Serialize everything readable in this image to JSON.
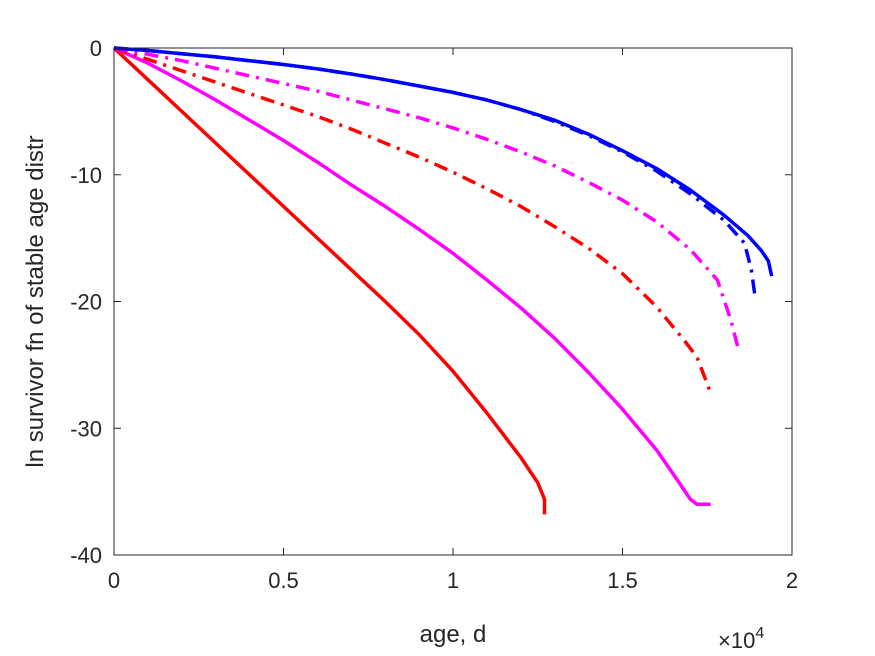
{
  "chart_data": {
    "type": "line",
    "title": "",
    "xlabel": "age, d",
    "ylabel": "ln survivor fn of stable age distr",
    "x_multiplier": "×10",
    "x_multiplier_exp": "4",
    "xlim": [
      0,
      2
    ],
    "ylim": [
      -40,
      0
    ],
    "xticks": [
      0,
      0.5,
      1,
      1.5,
      2
    ],
    "xtick_labels": [
      "0",
      "0.5",
      "1",
      "1.5",
      "2"
    ],
    "yticks": [
      0,
      -10,
      -20,
      -30,
      -40
    ],
    "ytick_labels": [
      "0",
      "-10",
      "-20",
      "-30",
      "-40"
    ],
    "grid": false,
    "box": true,
    "series": [
      {
        "color": "#ff0000",
        "style": "solid",
        "x": [
          0,
          0.1,
          0.2,
          0.3,
          0.4,
          0.5,
          0.6,
          0.7,
          0.8,
          0.9,
          1.0,
          1.1,
          1.2,
          1.25,
          1.27,
          1.27
        ],
        "y": [
          0,
          -2.5,
          -5.0,
          -7.5,
          -10.0,
          -12.5,
          -15.0,
          -17.5,
          -20.0,
          -22.6,
          -25.5,
          -28.8,
          -32.3,
          -34.3,
          -35.6,
          -36.8
        ]
      },
      {
        "color": "#ff00ff",
        "style": "solid",
        "x": [
          0,
          0.1,
          0.2,
          0.3,
          0.4,
          0.5,
          0.6,
          0.7,
          0.8,
          0.9,
          1.0,
          1.1,
          1.2,
          1.3,
          1.4,
          1.5,
          1.6,
          1.67,
          1.68,
          1.7,
          1.72,
          1.76
        ],
        "y": [
          0,
          -1.2,
          -2.6,
          -4.1,
          -5.7,
          -7.3,
          -9.0,
          -10.8,
          -12.5,
          -14.3,
          -16.2,
          -18.3,
          -20.5,
          -22.9,
          -25.6,
          -28.5,
          -31.7,
          -34.4,
          -34.8,
          -35.6,
          -36.0,
          -36.0
        ]
      },
      {
        "color": "#ff0000",
        "style": "dashdot",
        "x": [
          0,
          0.1,
          0.2,
          0.3,
          0.4,
          0.5,
          0.6,
          0.7,
          0.8,
          0.9,
          1.0,
          1.1,
          1.2,
          1.3,
          1.4,
          1.5,
          1.6,
          1.68,
          1.72,
          1.76
        ],
        "y": [
          0,
          -0.9,
          -1.8,
          -2.7,
          -3.6,
          -4.5,
          -5.4,
          -6.4,
          -7.5,
          -8.6,
          -9.8,
          -11.1,
          -12.5,
          -14.1,
          -15.8,
          -17.8,
          -20.4,
          -23.0,
          -24.4,
          -27.2
        ]
      },
      {
        "color": "#ff00ff",
        "style": "dashdot",
        "x": [
          0,
          0.1,
          0.2,
          0.3,
          0.4,
          0.5,
          0.6,
          0.7,
          0.8,
          0.9,
          1.0,
          1.1,
          1.2,
          1.3,
          1.4,
          1.5,
          1.6,
          1.7,
          1.78,
          1.82,
          1.84
        ],
        "y": [
          0,
          -0.5,
          -1.0,
          -1.6,
          -2.2,
          -2.8,
          -3.4,
          -4.1,
          -4.8,
          -5.5,
          -6.3,
          -7.2,
          -8.2,
          -9.3,
          -10.6,
          -12.0,
          -13.7,
          -15.9,
          -18.3,
          -21.5,
          -23.6
        ]
      },
      {
        "color": "#0000ff",
        "style": "dashdot",
        "x": [
          0,
          0.1,
          0.2,
          0.3,
          0.4,
          0.5,
          0.6,
          0.7,
          0.8,
          0.9,
          1.0,
          1.1,
          1.2,
          1.3,
          1.4,
          1.5,
          1.6,
          1.7,
          1.8,
          1.86,
          1.88,
          1.89
        ],
        "y": [
          0,
          -0.2,
          -0.45,
          -0.7,
          -1.0,
          -1.3,
          -1.65,
          -2.05,
          -2.5,
          -3.0,
          -3.5,
          -4.1,
          -4.85,
          -5.8,
          -6.9,
          -8.2,
          -9.7,
          -11.5,
          -13.6,
          -15.4,
          -17.5,
          -19.4
        ]
      },
      {
        "color": "#0000ff",
        "style": "solid",
        "x": [
          0,
          0.1,
          0.2,
          0.3,
          0.4,
          0.5,
          0.6,
          0.7,
          0.8,
          0.9,
          1.0,
          1.1,
          1.2,
          1.3,
          1.4,
          1.5,
          1.6,
          1.7,
          1.8,
          1.87,
          1.91,
          1.93,
          1.94
        ],
        "y": [
          0,
          -0.2,
          -0.45,
          -0.7,
          -1.0,
          -1.3,
          -1.65,
          -2.05,
          -2.5,
          -3.0,
          -3.5,
          -4.1,
          -4.85,
          -5.7,
          -6.8,
          -8.1,
          -9.5,
          -11.2,
          -13.2,
          -14.8,
          -16.0,
          -16.8,
          -18.0
        ]
      }
    ]
  }
}
